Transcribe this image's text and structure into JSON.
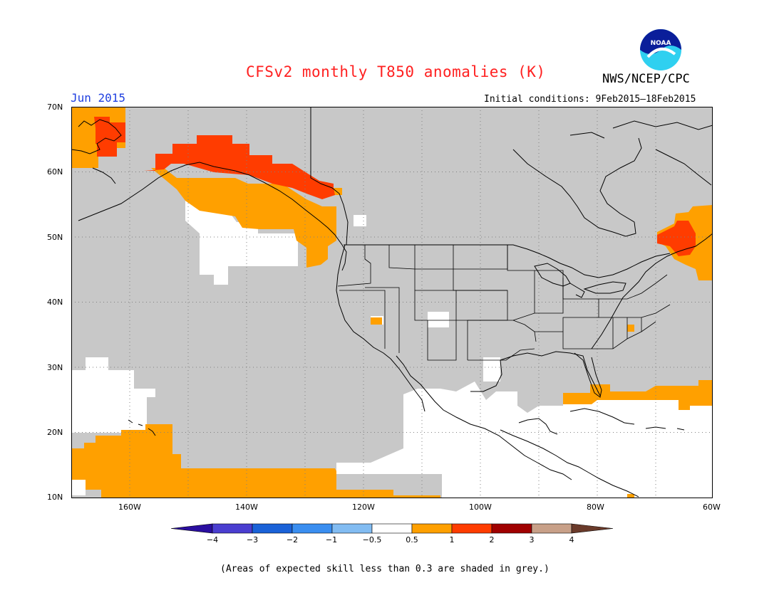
{
  "header": {
    "title": "CFSv2 monthly T850 anomalies (K)",
    "org": "NWS/NCEP/CPC",
    "logo_text": "NOAA",
    "month": "Jun 2015",
    "initial_conditions": "Initial conditions: 9Feb2015–18Feb2015"
  },
  "map": {
    "lat_labels": [
      "70N",
      "60N",
      "50N",
      "40N",
      "30N",
      "20N",
      "10N"
    ],
    "lon_labels": [
      "160W",
      "140W",
      "120W",
      "100W",
      "80W",
      "60W"
    ],
    "skill_grey": "#c8c8c8"
  },
  "colorbar": {
    "tick_labels": [
      "−4",
      "−3",
      "−2",
      "−1",
      "−0.5",
      "0.5",
      "1",
      "2",
      "3",
      "4"
    ],
    "colors": [
      "#2a0ea0",
      "#4a3ed0",
      "#1a62d8",
      "#3a8ef0",
      "#82bcf2",
      "#ffffff",
      "#ffa000",
      "#ff3c00",
      "#a00000",
      "#c8a088",
      "#6a3a2a"
    ]
  },
  "footer_note": "(Areas of expected skill less than 0.3 are shaded in grey.)"
}
